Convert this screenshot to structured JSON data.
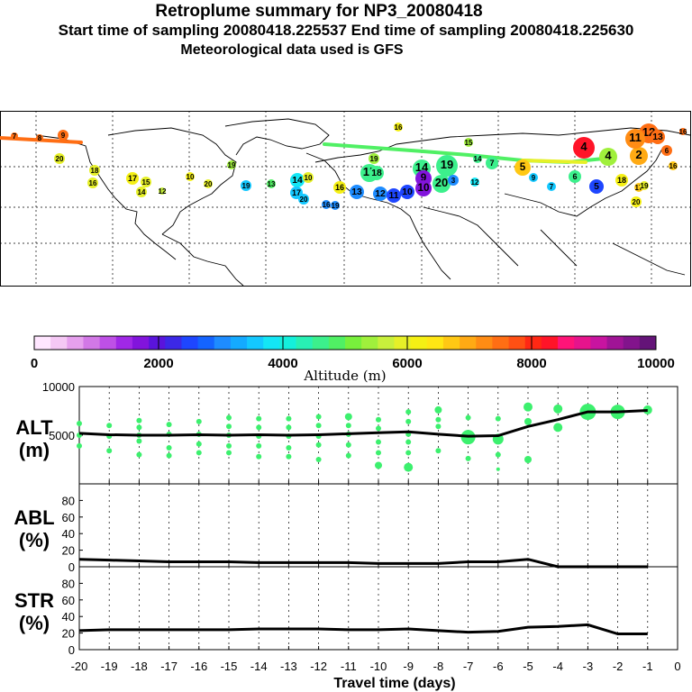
{
  "header": {
    "title": "Retroplume summary for NP3_20080418",
    "sampling_line": "Start time of sampling 20080418.225537     End time of sampling 20080418.225630",
    "met_line": "Meteorological data used is GFS"
  },
  "colorbar": {
    "label": "Altitude (m)",
    "min": 0,
    "max": 10000,
    "tick_labels": [
      "0",
      "2000",
      "4000",
      "6000",
      "8000",
      "10000"
    ],
    "colors": [
      "#ffe6ff",
      "#f5c8f5",
      "#e6a0ee",
      "#d278e6",
      "#be50e6",
      "#a028e6",
      "#8214dc",
      "#5a14dc",
      "#3c28e6",
      "#1e46ff",
      "#1464ff",
      "#1e8cff",
      "#14aaff",
      "#14c8ff",
      "#14e6f5",
      "#14f0dc",
      "#28f0b4",
      "#3cf08c",
      "#50f064",
      "#78f03c",
      "#a0f03c",
      "#c8f03c",
      "#e6f028",
      "#f5f014",
      "#ffe614",
      "#ffc814",
      "#ffaa14",
      "#ff8c14",
      "#ff6e14",
      "#ff5014",
      "#ff2814",
      "#ff1428",
      "#ff1478",
      "#e6148c",
      "#c814a0",
      "#a01496",
      "#82148c",
      "#641478"
    ]
  },
  "map": {
    "plume_labels": [
      {
        "t": "7",
        "c": "#ff6e14"
      },
      {
        "t": "8",
        "c": "#ff6e14"
      },
      {
        "t": "9",
        "c": "#ff6e14"
      },
      {
        "t": "20",
        "c": "#e6f028"
      },
      {
        "t": "18",
        "c": "#e6f028"
      },
      {
        "t": "16",
        "c": "#e6f028"
      },
      {
        "t": "17",
        "c": "#f5f014"
      },
      {
        "t": "15",
        "c": "#e6f028"
      },
      {
        "t": "14",
        "c": "#e6f028"
      },
      {
        "t": "12",
        "c": "#c8f03c"
      },
      {
        "t": "10",
        "c": "#f5f014"
      },
      {
        "t": "20",
        "c": "#e6f028"
      },
      {
        "t": "19",
        "c": "#a0f03c"
      },
      {
        "t": "13",
        "c": "#50f064"
      },
      {
        "t": "19",
        "c": "#14c8ff"
      },
      {
        "t": "14",
        "c": "#14e6f5"
      },
      {
        "t": "17",
        "c": "#14c8ff"
      },
      {
        "t": "20",
        "c": "#14c8ff"
      },
      {
        "t": "16",
        "c": "#1e8cff"
      },
      {
        "t": "19",
        "c": "#1e8cff"
      },
      {
        "t": "10",
        "c": "#e6f028"
      },
      {
        "t": "16",
        "c": "#f5f014"
      },
      {
        "t": "13",
        "c": "#1e8cff"
      },
      {
        "t": "12",
        "c": "#1e8cff"
      },
      {
        "t": "11",
        "c": "#1e46ff"
      },
      {
        "t": "10",
        "c": "#1e46ff"
      },
      {
        "t": "19",
        "c": "#a0f03c"
      },
      {
        "t": "15",
        "c": "#3cf08c"
      },
      {
        "t": "18",
        "c": "#3cf08c"
      },
      {
        "t": "14",
        "c": "#3cf08c"
      },
      {
        "t": "19",
        "c": "#3cf08c"
      },
      {
        "t": "9",
        "c": "#8214dc"
      },
      {
        "t": "10",
        "c": "#8214dc"
      },
      {
        "t": "20",
        "c": "#3cf08c"
      },
      {
        "t": "3",
        "c": "#1e8cff"
      },
      {
        "t": "12",
        "c": "#14e6f5"
      },
      {
        "t": "16",
        "c": "#f5f014"
      },
      {
        "t": "15",
        "c": "#a0f03c"
      },
      {
        "t": "14",
        "c": "#3cf08c"
      },
      {
        "t": "7",
        "c": "#3cf08c"
      },
      {
        "t": "5",
        "c": "#ffc814"
      },
      {
        "t": "9",
        "c": "#14c8ff"
      },
      {
        "t": "6",
        "c": "#3cf08c"
      },
      {
        "t": "5",
        "c": "#1e46ff"
      },
      {
        "t": "7",
        "c": "#14c8ff"
      },
      {
        "t": "4",
        "c": "#ff1428"
      },
      {
        "t": "4",
        "c": "#a0f03c"
      },
      {
        "t": "2",
        "c": "#ffaa14"
      },
      {
        "t": "12",
        "c": "#ff6e14"
      },
      {
        "t": "11",
        "c": "#ff8c14"
      },
      {
        "t": "13",
        "c": "#ff6e14"
      },
      {
        "t": "6",
        "c": "#ff6e14"
      },
      {
        "t": "16",
        "c": "#ffc814"
      },
      {
        "t": "18",
        "c": "#f5f014"
      },
      {
        "t": "17",
        "c": "#ffc814"
      },
      {
        "t": "19",
        "c": "#e6f028"
      },
      {
        "t": "20",
        "c": "#f5f014"
      },
      {
        "t": "16",
        "c": "#ff6e14"
      }
    ]
  },
  "chart_data": [
    {
      "type": "scatter",
      "title": "ALT",
      "ylabel_line1": "ALT",
      "ylabel_line2": "(m)",
      "xlabel": "Travel time (days)",
      "xlim": [
        -20,
        0
      ],
      "ylim": [
        0,
        10000
      ],
      "yticks": [
        5000,
        10000
      ],
      "ytick_labels": [
        "5000",
        "10000"
      ],
      "median_line": {
        "x": [
          -20,
          -19,
          -18,
          -17,
          -16,
          -15,
          -14,
          -13,
          -12,
          -11,
          -10,
          -9,
          -8,
          -7,
          -6,
          -5,
          -4,
          -3,
          -2,
          -1
        ],
        "y": [
          5200,
          5050,
          5000,
          5000,
          5050,
          5000,
          5050,
          5000,
          5050,
          5150,
          5250,
          5350,
          5100,
          4900,
          4950,
          5900,
          6600,
          7400,
          7400,
          7550
        ]
      },
      "points": [
        {
          "x": -20,
          "y": 6200,
          "r": 3
        },
        {
          "x": -20,
          "y": 5000,
          "r": 3
        },
        {
          "x": -20,
          "y": 3900,
          "r": 3
        },
        {
          "x": -19,
          "y": 6000,
          "r": 3
        },
        {
          "x": -19,
          "y": 4900,
          "r": 3
        },
        {
          "x": -19,
          "y": 3400,
          "r": 3
        },
        {
          "x": -18,
          "y": 6500,
          "r": 3
        },
        {
          "x": -18,
          "y": 5800,
          "r": 3
        },
        {
          "x": -18,
          "y": 5000,
          "r": 3
        },
        {
          "x": -18,
          "y": 4400,
          "r": 3
        },
        {
          "x": -18,
          "y": 3000,
          "r": 3
        },
        {
          "x": -17,
          "y": 6100,
          "r": 3
        },
        {
          "x": -17,
          "y": 5100,
          "r": 3
        },
        {
          "x": -17,
          "y": 3700,
          "r": 3
        },
        {
          "x": -17,
          "y": 2900,
          "r": 3
        },
        {
          "x": -16,
          "y": 6400,
          "r": 3
        },
        {
          "x": -16,
          "y": 5100,
          "r": 3
        },
        {
          "x": -16,
          "y": 4100,
          "r": 3
        },
        {
          "x": -16,
          "y": 3200,
          "r": 3
        },
        {
          "x": -15,
          "y": 6800,
          "r": 3
        },
        {
          "x": -15,
          "y": 5900,
          "r": 3
        },
        {
          "x": -15,
          "y": 5000,
          "r": 3
        },
        {
          "x": -15,
          "y": 3900,
          "r": 3
        },
        {
          "x": -15,
          "y": 3200,
          "r": 3
        },
        {
          "x": -14,
          "y": 6700,
          "r": 3
        },
        {
          "x": -14,
          "y": 5800,
          "r": 3
        },
        {
          "x": -14,
          "y": 4900,
          "r": 3
        },
        {
          "x": -14,
          "y": 3900,
          "r": 3
        },
        {
          "x": -14,
          "y": 2800,
          "r": 3
        },
        {
          "x": -13,
          "y": 6700,
          "r": 3
        },
        {
          "x": -13,
          "y": 5800,
          "r": 3
        },
        {
          "x": -13,
          "y": 4900,
          "r": 3
        },
        {
          "x": -13,
          "y": 3700,
          "r": 3
        },
        {
          "x": -13,
          "y": 2800,
          "r": 3
        },
        {
          "x": -12,
          "y": 6900,
          "r": 3
        },
        {
          "x": -12,
          "y": 6000,
          "r": 3
        },
        {
          "x": -12,
          "y": 4900,
          "r": 3
        },
        {
          "x": -12,
          "y": 4000,
          "r": 3
        },
        {
          "x": -12,
          "y": 2500,
          "r": 3
        },
        {
          "x": -11,
          "y": 6900,
          "r": 4
        },
        {
          "x": -11,
          "y": 6000,
          "r": 3
        },
        {
          "x": -11,
          "y": 5100,
          "r": 3
        },
        {
          "x": -11,
          "y": 4000,
          "r": 3
        },
        {
          "x": -11,
          "y": 2900,
          "r": 3
        },
        {
          "x": -10,
          "y": 6600,
          "r": 3
        },
        {
          "x": -10,
          "y": 5700,
          "r": 3
        },
        {
          "x": -10,
          "y": 4300,
          "r": 3
        },
        {
          "x": -10,
          "y": 3200,
          "r": 3
        },
        {
          "x": -10,
          "y": 1900,
          "r": 4
        },
        {
          "x": -9,
          "y": 7400,
          "r": 3
        },
        {
          "x": -9,
          "y": 6400,
          "r": 3
        },
        {
          "x": -9,
          "y": 5100,
          "r": 3
        },
        {
          "x": -9,
          "y": 4300,
          "r": 3
        },
        {
          "x": -9,
          "y": 3200,
          "r": 3
        },
        {
          "x": -9,
          "y": 1700,
          "r": 5
        },
        {
          "x": -8,
          "y": 7600,
          "r": 4
        },
        {
          "x": -8,
          "y": 6600,
          "r": 3
        },
        {
          "x": -8,
          "y": 5900,
          "r": 3
        },
        {
          "x": -8,
          "y": 3400,
          "r": 3
        },
        {
          "x": -7,
          "y": 6800,
          "r": 3
        },
        {
          "x": -7,
          "y": 4800,
          "r": 8
        },
        {
          "x": -7,
          "y": 2600,
          "r": 3
        },
        {
          "x": -6,
          "y": 6700,
          "r": 3
        },
        {
          "x": -6,
          "y": 4600,
          "r": 6
        },
        {
          "x": -6,
          "y": 3000,
          "r": 3
        },
        {
          "x": -6,
          "y": 1500,
          "r": 2
        },
        {
          "x": -5,
          "y": 7900,
          "r": 5
        },
        {
          "x": -5,
          "y": 6400,
          "r": 4
        },
        {
          "x": -5,
          "y": 2500,
          "r": 4
        },
        {
          "x": -4,
          "y": 7700,
          "r": 5
        },
        {
          "x": -4,
          "y": 5800,
          "r": 5
        },
        {
          "x": -3,
          "y": 7400,
          "r": 9
        },
        {
          "x": -2,
          "y": 7400,
          "r": 8
        },
        {
          "x": -1,
          "y": 7600,
          "r": 5
        }
      ]
    },
    {
      "type": "line",
      "title": "ABL",
      "ylabel_line1": "ABL",
      "ylabel_line2": "(%)",
      "xlim": [
        -20,
        0
      ],
      "ylim": [
        0,
        100
      ],
      "yticks": [
        0,
        20,
        40,
        60,
        80
      ],
      "ytick_labels": [
        "0",
        "20",
        "40",
        "60",
        "80"
      ],
      "series": [
        {
          "name": "ABL",
          "x": [
            -20,
            -19,
            -18,
            -17,
            -16,
            -15,
            -14,
            -13,
            -12,
            -11,
            -10,
            -9,
            -8,
            -7,
            -6,
            -5,
            -4,
            -3,
            -2,
            -1
          ],
          "y": [
            9,
            8,
            7,
            6,
            6,
            6,
            5,
            5,
            5,
            5,
            4,
            4,
            4,
            6,
            6,
            9,
            0,
            0,
            0,
            0
          ]
        }
      ]
    },
    {
      "type": "line",
      "title": "STR",
      "ylabel_line1": "STR",
      "ylabel_line2": "(%)",
      "xlim": [
        -20,
        0
      ],
      "ylim": [
        0,
        100
      ],
      "yticks": [
        0,
        20,
        40,
        60,
        80
      ],
      "ytick_labels": [
        "0",
        "20",
        "40",
        "60",
        "80"
      ],
      "xticks": [
        -20,
        -19,
        -18,
        -17,
        -16,
        -15,
        -14,
        -13,
        -12,
        -11,
        -10,
        -9,
        -8,
        -7,
        -6,
        -5,
        -4,
        -3,
        -2,
        -1,
        0
      ],
      "xtick_labels": [
        "-20",
        "-19",
        "-18",
        "-17",
        "-16",
        "-15",
        "-14",
        "-13",
        "-12",
        "-11",
        "-10",
        "-9",
        "-8",
        "-7",
        "-6",
        "-5",
        "-4",
        "-3",
        "-2",
        "-1",
        "0"
      ],
      "series": [
        {
          "name": "STR",
          "x": [
            -20,
            -19,
            -18,
            -17,
            -16,
            -15,
            -14,
            -13,
            -12,
            -11,
            -10,
            -9,
            -8,
            -7,
            -6,
            -5,
            -4,
            -3,
            -2,
            -1
          ],
          "y": [
            23,
            24,
            24,
            24,
            24,
            24,
            25,
            25,
            25,
            24,
            24,
            25,
            23,
            21,
            22,
            27,
            28,
            30,
            19,
            19
          ]
        }
      ]
    }
  ]
}
